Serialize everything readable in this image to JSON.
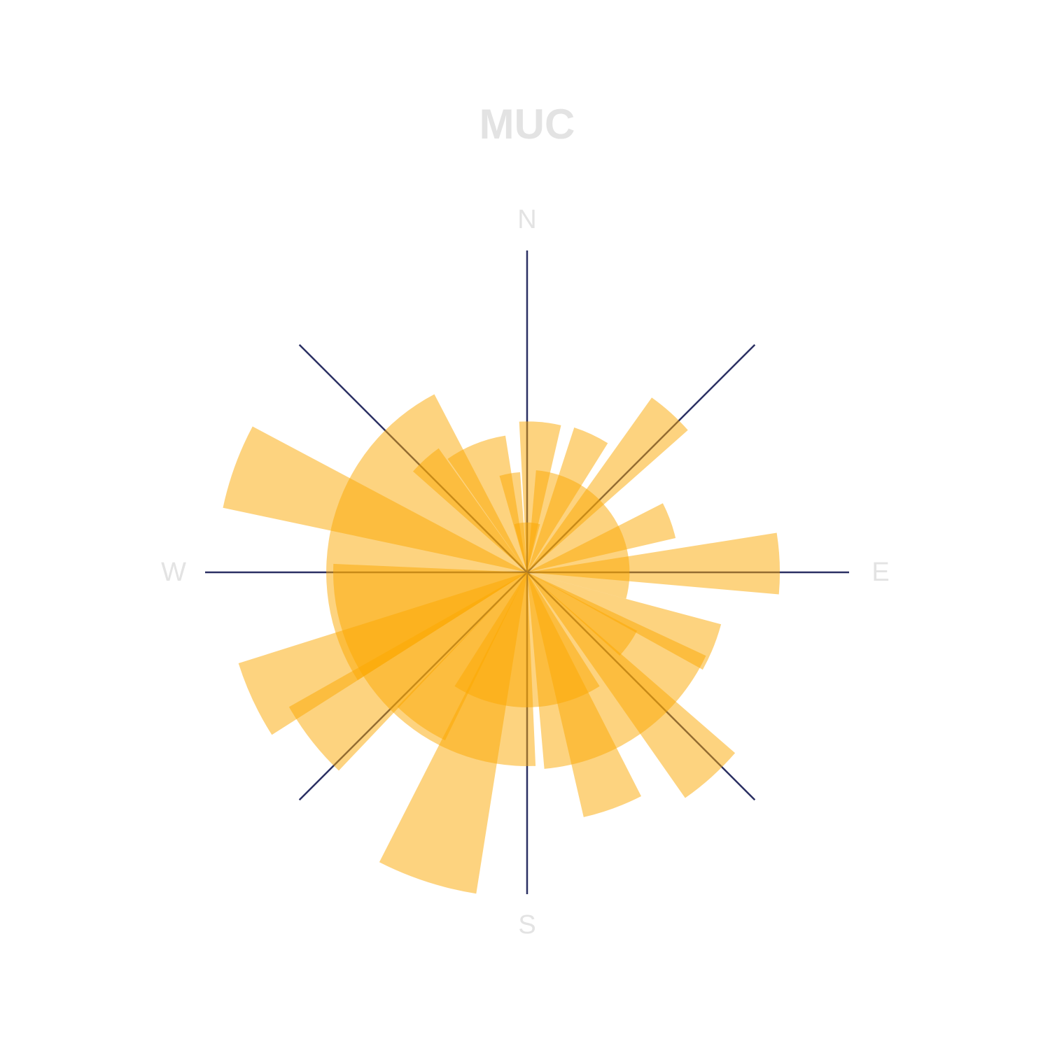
{
  "chart_data": {
    "type": "polar-bar",
    "title": "MUC",
    "directions": [
      "N",
      "E",
      "S",
      "W"
    ],
    "axis_angles_deg": [
      0,
      45,
      90,
      135,
      180,
      225,
      270,
      315
    ],
    "value_max": 465,
    "wedges": [
      {
        "angle": -10,
        "value": 145,
        "width": 12
      },
      {
        "angle": 5,
        "value": 218,
        "width": 16
      },
      {
        "angle": 25,
        "value": 220,
        "width": 14
      },
      {
        "angle": 42,
        "value": 310,
        "width": 13
      },
      {
        "angle": 70,
        "value": 220,
        "width": 14
      },
      {
        "angle": 88,
        "value": 365,
        "width": 14
      },
      {
        "angle": 112,
        "value": 290,
        "width": 14
      },
      {
        "angle": 125,
        "value": 180,
        "width": 14
      },
      {
        "angle": 138,
        "value": 398,
        "width": 14
      },
      {
        "angle": 160,
        "value": 363,
        "width": 14
      },
      {
        "angle": 198,
        "value": 470,
        "width": 18
      },
      {
        "angle": 215,
        "value": 270,
        "width": 18
      },
      {
        "angle": 232,
        "value": 395,
        "width": 17
      },
      {
        "angle": 245,
        "value": 437,
        "width": 15
      },
      {
        "angle": 290,
        "value": 449,
        "width": 16
      },
      {
        "angle": 318,
        "value": 220,
        "width": 13
      },
      {
        "angle": 338,
        "value": 200,
        "width": 26
      },
      {
        "angle": 0,
        "value": 72,
        "width": 30
      },
      {
        "angle": 55,
        "value": 148,
        "width": 100
      },
      {
        "angle": 145,
        "value": 285,
        "width": 60
      },
      {
        "angle": 180,
        "value": 195,
        "width": 65
      },
      {
        "angle": 225,
        "value": 280,
        "width": 95
      },
      {
        "angle": 285,
        "value": 290,
        "width": 95
      }
    ],
    "colors": {
      "wedge": "#fca800",
      "axis": "#2b3063",
      "labels": "#e3e3e3"
    },
    "wedge_opacity": 0.5
  }
}
